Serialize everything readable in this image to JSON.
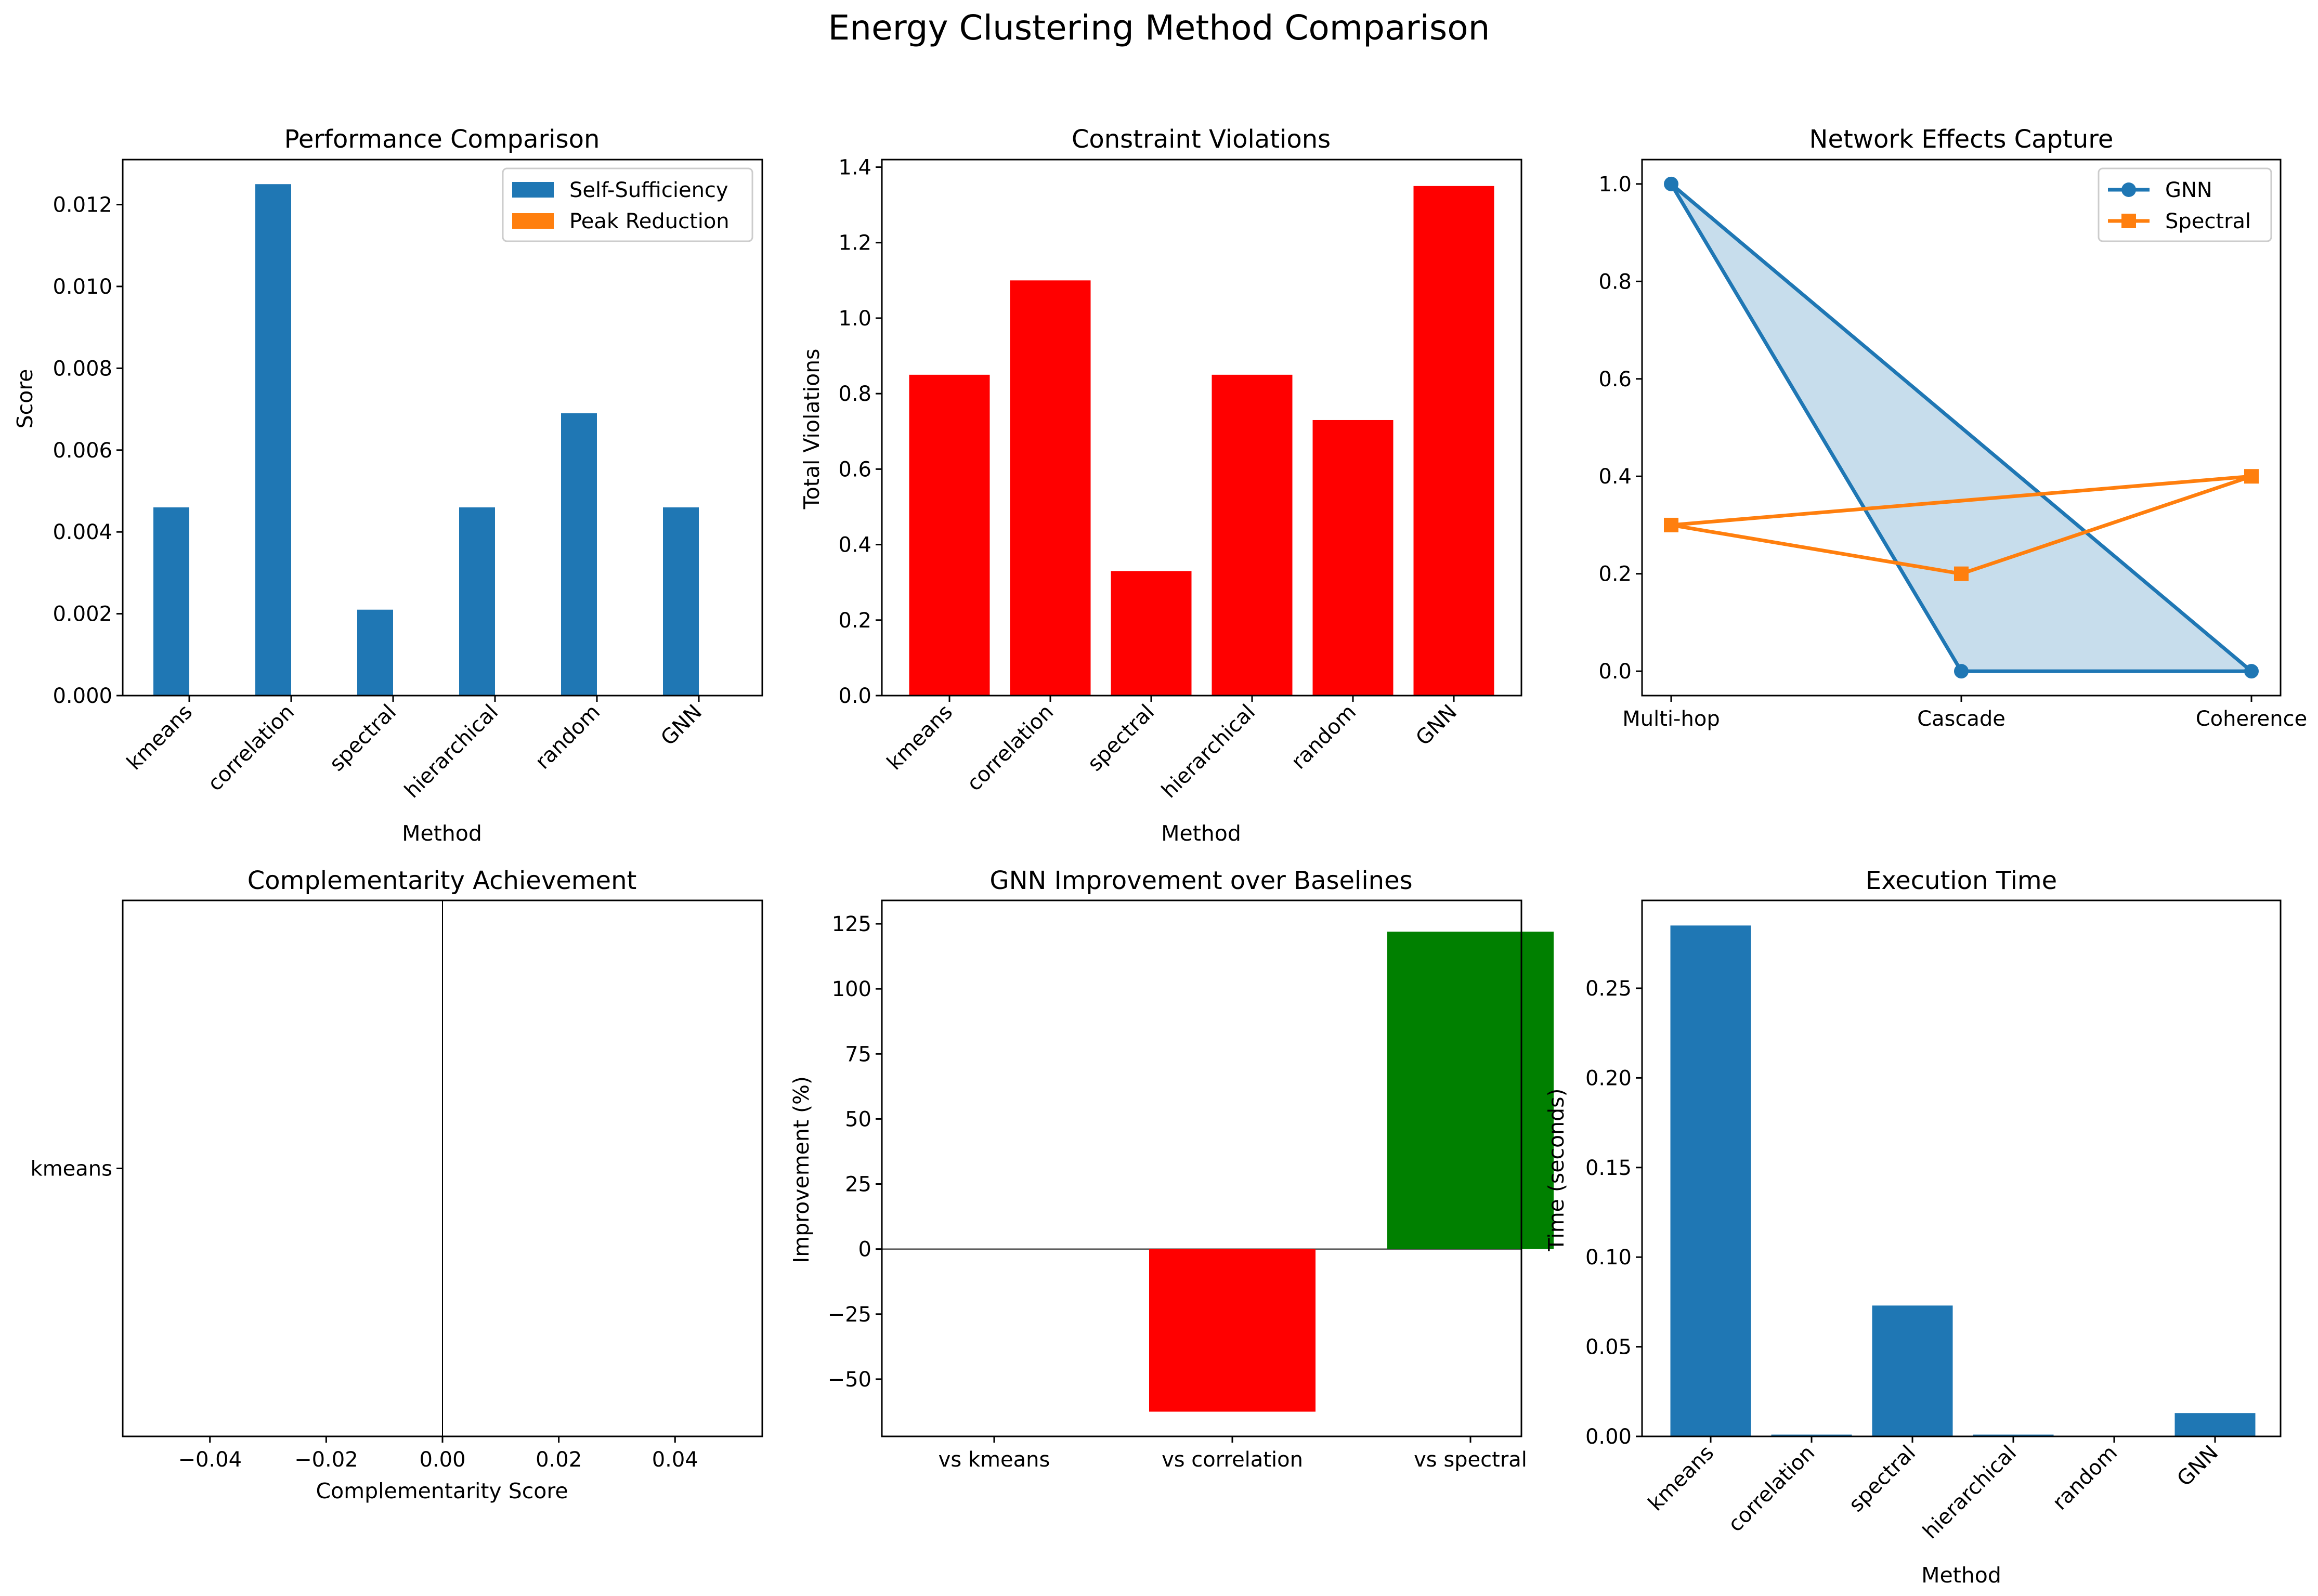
{
  "suptitle": "Energy Clustering Method Comparison",
  "chart_data": [
    {
      "type": "bar",
      "title": "Performance Comparison",
      "xlabel": "Method",
      "ylabel": "Score",
      "categories": [
        "kmeans",
        "correlation",
        "spectral",
        "hierarchical",
        "random",
        "GNN"
      ],
      "series": [
        {
          "name": "Self-Sufficiency",
          "color": "#1f77b4",
          "values": [
            0.0046,
            0.0125,
            0.0021,
            0.0046,
            0.0069,
            0.0046
          ]
        },
        {
          "name": "Peak Reduction",
          "color": "#ff7f0e",
          "values": [
            0,
            0,
            0,
            0,
            0,
            0
          ]
        }
      ],
      "ylim": [
        0,
        0.0131
      ],
      "yticks": [
        0.0,
        0.002,
        0.004,
        0.006,
        0.008,
        0.01,
        0.012
      ],
      "ytick_labels": [
        "0.000",
        "0.002",
        "0.004",
        "0.006",
        "0.008",
        "0.010",
        "0.012"
      ],
      "legend": "top-right",
      "grid": false
    },
    {
      "type": "bar",
      "title": "Constraint Violations",
      "xlabel": "Method",
      "ylabel": "Total Violations",
      "categories": [
        "kmeans",
        "correlation",
        "spectral",
        "hierarchical",
        "random",
        "GNN"
      ],
      "values": [
        0.85,
        1.1,
        0.33,
        0.85,
        0.73,
        1.35
      ],
      "color": "#ff0000",
      "ylim": [
        0,
        1.42
      ],
      "yticks": [
        0.0,
        0.2,
        0.4,
        0.6,
        0.8,
        1.0,
        1.2,
        1.4
      ],
      "ytick_labels": [
        "0.0",
        "0.2",
        "0.4",
        "0.6",
        "0.8",
        "1.0",
        "1.2",
        "1.4"
      ],
      "grid": false
    },
    {
      "type": "line",
      "title": "Network Effects Capture",
      "categories": [
        "Multi-hop",
        "Cascade",
        "Coherence"
      ],
      "series": [
        {
          "name": "GNN",
          "color": "#1f77b4",
          "marker": "circle",
          "fill": true,
          "values": [
            1.0,
            0.0,
            0.0
          ]
        },
        {
          "name": "Spectral",
          "color": "#ff7f0e",
          "marker": "square",
          "fill": false,
          "values": [
            0.3,
            0.2,
            0.4
          ]
        }
      ],
      "ylim": [
        -0.05,
        1.05
      ],
      "yticks": [
        0.0,
        0.2,
        0.4,
        0.6,
        0.8,
        1.0
      ],
      "ytick_labels": [
        "0.0",
        "0.2",
        "0.4",
        "0.6",
        "0.8",
        "1.0"
      ],
      "legend": "top-right",
      "grid": false
    },
    {
      "type": "bar",
      "orientation": "horizontal",
      "title": "Complementarity Achievement",
      "xlabel": "Complementarity Score",
      "categories": [
        "kmeans"
      ],
      "values": [
        0
      ],
      "xlim": [
        -0.055,
        0.055
      ],
      "xticks": [
        -0.04,
        -0.02,
        0.0,
        0.02,
        0.04
      ],
      "xtick_labels": [
        "−0.04",
        "−0.02",
        "0.00",
        "0.02",
        "0.04"
      ],
      "ylim": [
        -0.5,
        0.5
      ],
      "grid": false
    },
    {
      "type": "bar",
      "title": "GNN Improvement over Baselines",
      "ylabel": "Improvement (%)",
      "categories": [
        "vs kmeans",
        "vs correlation",
        "vs spectral"
      ],
      "values": [
        0,
        -62.5,
        122
      ],
      "colors": [
        "#ff0000",
        "#ff0000",
        "#008000"
      ],
      "ylim": [
        -72,
        134
      ],
      "yticks": [
        -50,
        -25,
        0,
        25,
        50,
        75,
        100,
        125
      ],
      "ytick_labels": [
        "−50",
        "−25",
        "0",
        "25",
        "50",
        "75",
        "100",
        "125"
      ],
      "grid": false
    },
    {
      "type": "bar",
      "title": "Execution Time",
      "xlabel": "Method",
      "ylabel": "Time (seconds)",
      "categories": [
        "kmeans",
        "correlation",
        "spectral",
        "hierarchical",
        "random",
        "GNN"
      ],
      "values": [
        0.285,
        0.001,
        0.073,
        0.001,
        0.0,
        0.013
      ],
      "color": "#1f77b4",
      "ylim": [
        0,
        0.299
      ],
      "yticks": [
        0.0,
        0.05,
        0.1,
        0.15,
        0.2,
        0.25
      ],
      "ytick_labels": [
        "0.00",
        "0.05",
        "0.10",
        "0.15",
        "0.20",
        "0.25"
      ],
      "grid": false
    }
  ]
}
